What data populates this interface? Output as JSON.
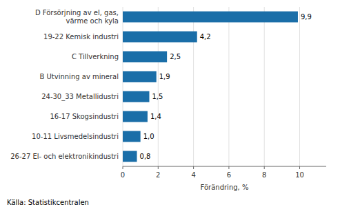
{
  "chart_data": {
    "type": "bar",
    "orientation": "horizontal",
    "categories": [
      "26-27 El- och elektronikindustri",
      "10-11 Livsmedelsindustri",
      "16-17 Skogsindustri",
      "24-30_33 Metallidustri",
      "B Utvinning av mineral",
      "C Tillverkning",
      "19-22 Kemisk industri",
      "D Försörjning av el, gas,\nvärme och kyla"
    ],
    "values": [
      0.8,
      1.0,
      1.4,
      1.5,
      1.9,
      2.5,
      4.2,
      9.9
    ],
    "value_labels": [
      "0,8",
      "1,0",
      "1,4",
      "1,5",
      "1,9",
      "2,5",
      "4,2",
      "9,9"
    ],
    "data_labels": true,
    "color": "#1a6ea8",
    "xlabel": "Förändring, %",
    "xlim": [
      0,
      11.5
    ],
    "xticks": [
      0,
      2,
      4,
      6,
      8,
      10
    ],
    "grid": true,
    "annotations": [
      "Källa: Statistikcentralen"
    ]
  }
}
